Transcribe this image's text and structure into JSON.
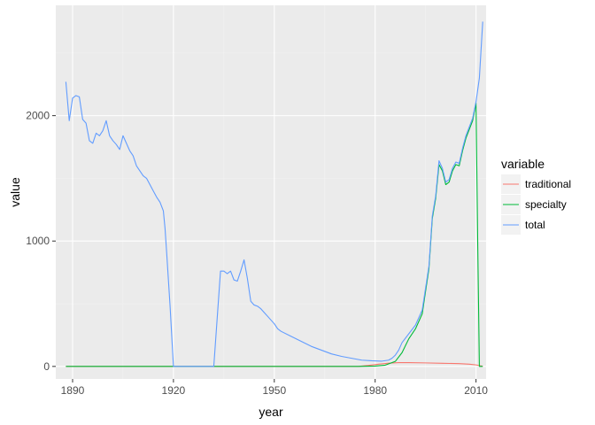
{
  "chart_data": {
    "type": "line",
    "xlabel": "year",
    "ylabel": "value",
    "xlim": [
      1885,
      2013
    ],
    "ylim": [
      -100,
      2880
    ],
    "x_ticks": [
      1890,
      1920,
      1950,
      1980,
      2010
    ],
    "y_ticks": [
      0,
      1000,
      2000
    ],
    "grid": true,
    "legend_position": "right",
    "legend_title": "variable",
    "colors": {
      "panel": "#ebebeb",
      "grid_major": "#ffffff",
      "grid_minor": "#f2f2f2"
    },
    "series": [
      {
        "name": "traditional",
        "color": "#F8766D",
        "points": [
          [
            1888,
            0
          ],
          [
            1975,
            0
          ],
          [
            1978,
            8
          ],
          [
            1981,
            18
          ],
          [
            1984,
            26
          ],
          [
            1987,
            30
          ],
          [
            1990,
            30
          ],
          [
            1995,
            28
          ],
          [
            2000,
            25
          ],
          [
            2005,
            22
          ],
          [
            2008,
            18
          ],
          [
            2010,
            12
          ],
          [
            2011,
            6
          ],
          [
            2012,
            2
          ]
        ]
      },
      {
        "name": "specialty",
        "color": "#00BA38",
        "points": [
          [
            1888,
            0
          ],
          [
            1975,
            0
          ],
          [
            1980,
            3
          ],
          [
            1983,
            10
          ],
          [
            1986,
            40
          ],
          [
            1988,
            110
          ],
          [
            1990,
            220
          ],
          [
            1992,
            300
          ],
          [
            1994,
            420
          ],
          [
            1996,
            780
          ],
          [
            1997,
            1180
          ],
          [
            1998,
            1340
          ],
          [
            1999,
            1610
          ],
          [
            2000,
            1560
          ],
          [
            2001,
            1450
          ],
          [
            2002,
            1470
          ],
          [
            2003,
            1560
          ],
          [
            2004,
            1610
          ],
          [
            2005,
            1600
          ],
          [
            2006,
            1720
          ],
          [
            2007,
            1820
          ],
          [
            2008,
            1890
          ],
          [
            2009,
            1960
          ],
          [
            2010,
            2100
          ],
          [
            2010.5,
            1000
          ],
          [
            2011,
            0
          ],
          [
            2012,
            0
          ]
        ]
      },
      {
        "name": "total",
        "color": "#619CFF",
        "points": [
          [
            1888,
            2270
          ],
          [
            1889,
            1960
          ],
          [
            1890,
            2140
          ],
          [
            1891,
            2160
          ],
          [
            1892,
            2150
          ],
          [
            1893,
            1970
          ],
          [
            1894,
            1940
          ],
          [
            1895,
            1800
          ],
          [
            1896,
            1780
          ],
          [
            1897,
            1860
          ],
          [
            1898,
            1840
          ],
          [
            1899,
            1880
          ],
          [
            1900,
            1960
          ],
          [
            1901,
            1840
          ],
          [
            1902,
            1800
          ],
          [
            1903,
            1770
          ],
          [
            1904,
            1730
          ],
          [
            1905,
            1840
          ],
          [
            1906,
            1780
          ],
          [
            1907,
            1720
          ],
          [
            1908,
            1680
          ],
          [
            1909,
            1600
          ],
          [
            1910,
            1560
          ],
          [
            1911,
            1520
          ],
          [
            1912,
            1500
          ],
          [
            1913,
            1450
          ],
          [
            1914,
            1400
          ],
          [
            1915,
            1350
          ],
          [
            1916,
            1310
          ],
          [
            1917,
            1240
          ],
          [
            1917.5,
            1100
          ],
          [
            1918,
            900
          ],
          [
            1919,
            480
          ],
          [
            1920,
            0
          ],
          [
            1932,
            0
          ],
          [
            1934,
            760
          ],
          [
            1935,
            760
          ],
          [
            1936,
            740
          ],
          [
            1937,
            760
          ],
          [
            1938,
            690
          ],
          [
            1939,
            680
          ],
          [
            1940,
            760
          ],
          [
            1941,
            850
          ],
          [
            1942,
            700
          ],
          [
            1943,
            520
          ],
          [
            1944,
            490
          ],
          [
            1945,
            480
          ],
          [
            1946,
            460
          ],
          [
            1947,
            430
          ],
          [
            1948,
            400
          ],
          [
            1949,
            370
          ],
          [
            1950,
            340
          ],
          [
            1951,
            300
          ],
          [
            1952,
            280
          ],
          [
            1955,
            240
          ],
          [
            1958,
            200
          ],
          [
            1961,
            160
          ],
          [
            1964,
            130
          ],
          [
            1967,
            100
          ],
          [
            1970,
            80
          ],
          [
            1973,
            65
          ],
          [
            1976,
            50
          ],
          [
            1979,
            45
          ],
          [
            1982,
            42
          ],
          [
            1984,
            50
          ],
          [
            1985,
            65
          ],
          [
            1986,
            90
          ],
          [
            1987,
            130
          ],
          [
            1988,
            190
          ],
          [
            1990,
            260
          ],
          [
            1992,
            330
          ],
          [
            1994,
            450
          ],
          [
            1996,
            800
          ],
          [
            1997,
            1200
          ],
          [
            1998,
            1360
          ],
          [
            1999,
            1640
          ],
          [
            2000,
            1580
          ],
          [
            2001,
            1470
          ],
          [
            2002,
            1490
          ],
          [
            2003,
            1580
          ],
          [
            2004,
            1630
          ],
          [
            2005,
            1620
          ],
          [
            2006,
            1740
          ],
          [
            2007,
            1840
          ],
          [
            2008,
            1910
          ],
          [
            2009,
            1980
          ],
          [
            2010,
            2110
          ],
          [
            2011,
            2300
          ],
          [
            2012,
            2750
          ]
        ]
      }
    ]
  }
}
